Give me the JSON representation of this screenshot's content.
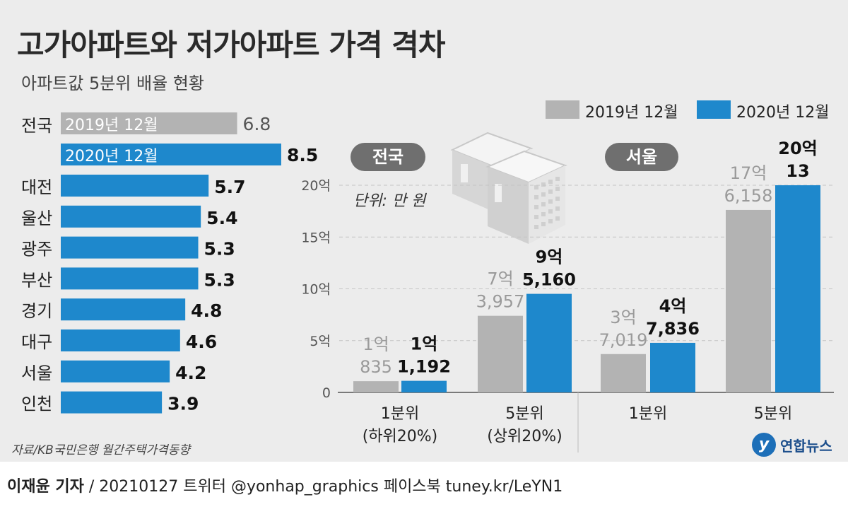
{
  "title": "고가아파트와 저가아파트 가격 격차",
  "subtitle": "아파트값 5분위 배율 현황",
  "unit_label": "단위: 만 원",
  "source": "자료/KB국민은행 월간주택가격동향",
  "logo_text": "연합뉴스",
  "logo_glyph": "y",
  "footer": {
    "reporter": "이재윤 기자",
    "rest": " / 20210127   트위터 @yonhap_graphics  페이스북 tuney.kr/LeYN1"
  },
  "legend": [
    "2019년 12월",
    "2020년 12월"
  ],
  "colors": {
    "gray": "#b3b3b3",
    "blue": "#1e88cc",
    "panel": "#ececec",
    "pill": "#6f6f6f"
  },
  "chart_data": [
    {
      "type": "bar",
      "orientation": "horizontal",
      "title": "아파트값 5분위 배율 현황",
      "national": {
        "label": "전국",
        "bars": [
          {
            "series": "2019년 12월",
            "label": "2019년 12월",
            "value": 6.8,
            "value_text": "6.8"
          },
          {
            "series": "2020년 12월",
            "label": "2020년 12월",
            "value": 8.5,
            "value_text": "8.5"
          }
        ]
      },
      "categories": [
        "대전",
        "울산",
        "광주",
        "부산",
        "경기",
        "대구",
        "서울",
        "인천"
      ],
      "values": [
        5.7,
        5.4,
        5.3,
        5.3,
        4.8,
        4.6,
        4.2,
        3.9
      ],
      "value_texts": [
        "5.7",
        "5.4",
        "5.3",
        "5.3",
        "4.8",
        "4.6",
        "4.2",
        "3.9"
      ]
    },
    {
      "type": "bar",
      "title": "전국",
      "unit": "만 원",
      "ylim": [
        0,
        200000
      ],
      "yticks": [
        0,
        50000,
        100000,
        150000,
        200000
      ],
      "ytick_labels": [
        "0",
        "5억",
        "10억",
        "15억",
        "20억"
      ],
      "categories": [
        [
          "1분위",
          "(하위20%)"
        ],
        [
          "5분위",
          "(상위20%)"
        ]
      ],
      "series": [
        {
          "name": "2019년 12월",
          "values": [
            10835,
            73957
          ],
          "labels": [
            [
              "1억",
              "835"
            ],
            [
              "7억",
              "3,957"
            ]
          ]
        },
        {
          "name": "2020년 12월",
          "values": [
            11192,
            95160
          ],
          "labels": [
            [
              "1억",
              "1,192"
            ],
            [
              "9억",
              "5,160"
            ]
          ]
        }
      ]
    },
    {
      "type": "bar",
      "title": "서울",
      "unit": "만 원",
      "ylim": [
        0,
        200000
      ],
      "categories": [
        [
          "1분위"
        ],
        [
          "5분위"
        ]
      ],
      "series": [
        {
          "name": "2019년 12월",
          "values": [
            37019,
            176158
          ],
          "labels": [
            [
              "3억",
              "7,019"
            ],
            [
              "17억",
              "6,158"
            ]
          ]
        },
        {
          "name": "2020년 12월",
          "values": [
            47836,
            200013
          ],
          "labels": [
            [
              "4억",
              "7,836"
            ],
            [
              "20억",
              "13"
            ]
          ]
        }
      ]
    }
  ]
}
